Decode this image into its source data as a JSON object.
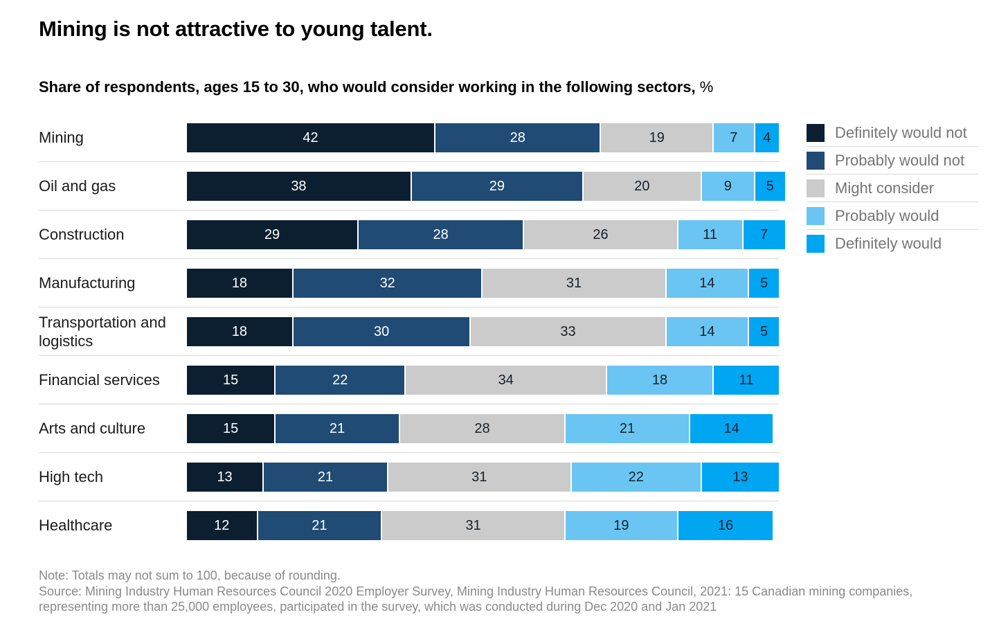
{
  "chart": {
    "title": "Mining is not attractive to young talent.",
    "subtitle": "Share of respondents, ages 15 to 30, who would consider working in the following sectors,",
    "unit": "%"
  },
  "chart_data": {
    "type": "bar",
    "stacked": true,
    "orientation": "horizontal",
    "value_unit": "%",
    "axis_max": 100,
    "grid": false,
    "legend_position": "right",
    "categories": [
      "Mining",
      "Oil and gas",
      "Construction",
      "Manufacturing",
      "Transportation and logistics",
      "Financial services",
      "Arts and culture",
      "High tech",
      "Healthcare"
    ],
    "series": [
      {
        "name": "Definitely would not",
        "color": "#0c1f30",
        "text_color": "#ffffff",
        "values": [
          42,
          38,
          29,
          18,
          18,
          15,
          15,
          13,
          12
        ]
      },
      {
        "name": "Probably would not",
        "color": "#1f4b74",
        "text_color": "#ffffff",
        "values": [
          28,
          29,
          28,
          32,
          30,
          22,
          21,
          21,
          21
        ]
      },
      {
        "name": "Might consider",
        "color": "#cbcbcb",
        "text_color": "#16212c",
        "values": [
          19,
          20,
          26,
          31,
          33,
          34,
          28,
          31,
          31
        ]
      },
      {
        "name": "Probably would",
        "color": "#6ac5f2",
        "text_color": "#16212c",
        "values": [
          7,
          9,
          11,
          14,
          14,
          18,
          21,
          22,
          19
        ]
      },
      {
        "name": "Definitely would",
        "color": "#00a6f1",
        "text_color": "#16212c",
        "values": [
          4,
          5,
          7,
          5,
          5,
          11,
          14,
          13,
          16
        ]
      }
    ]
  },
  "footer": {
    "note": "Note: Totals may not sum to 100, because of rounding.",
    "source": "Source: Mining Industry Human Resources Council 2020 Employer Survey, Mining Industry Human Resources Council, 2021: 15 Canadian mining companies, representing more than 25,000 employees, participated in the survey, which was conducted during Dec 2020 and Jan 2021"
  }
}
